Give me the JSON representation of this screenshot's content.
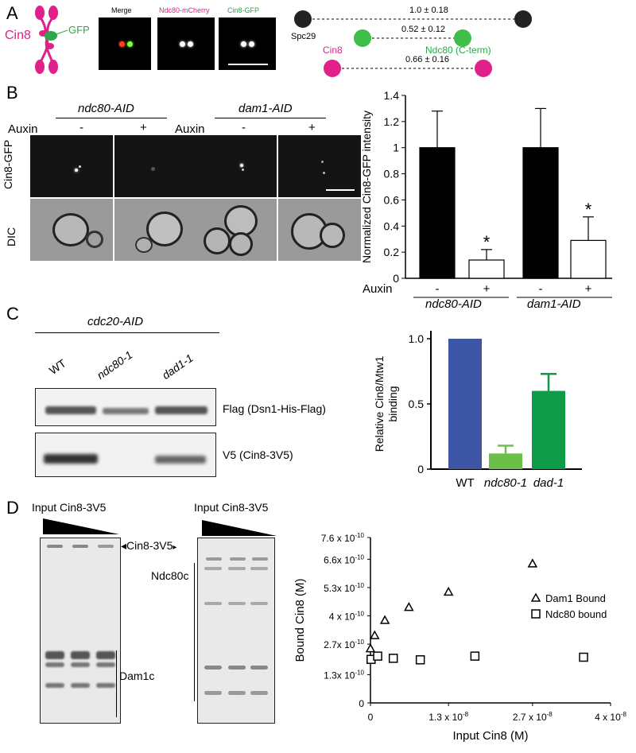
{
  "panel_labels": {
    "a": "A",
    "b": "B",
    "c": "C",
    "d": "D"
  },
  "colors": {
    "magenta": "#e0218a",
    "green": "#2aa84a",
    "wt_bar": "#3c55a5",
    "ndc80_bar": "#6cc04a",
    "dad1_bar": "#0f9a48"
  },
  "panelA": {
    "cin8": "Cin8",
    "gfp": "GFP",
    "merge": "Merge",
    "ndc80_mcherry": "Ndc80-mCherry",
    "cin8_gfp": "Cin8-GFP",
    "diagram": {
      "spc29": "Spc29",
      "ndc80_cterm": "Ndc80 (C-term)",
      "cin8": "Cin8",
      "dist_spc29": "1.0 ± 0.18",
      "dist_ndc80": "0.52 ± 0.12",
      "dist_cin8": "0.66 ± 0.16"
    }
  },
  "panelB": {
    "ndc80_aid": "ndc80-AID",
    "dam1_aid": "dam1-AID",
    "auxin": "Auxin",
    "minus": "-",
    "plus": "+",
    "row_gfp": "Cin8-GFP",
    "row_dic": "DIC"
  },
  "chartB": {
    "type": "bar",
    "ylabel": "Normalized Cin8-GFP intensity",
    "ylim": [
      0,
      1.4
    ],
    "yticks": [
      "0",
      "0.2",
      "0.4",
      "0.6",
      "0.8",
      "1",
      "1.2",
      "1.4"
    ],
    "auxin_label": "Auxin",
    "bars": [
      {
        "auxin": "-",
        "value": 1.0,
        "error": 0.28,
        "fill": "black",
        "star": ""
      },
      {
        "auxin": "+",
        "value": 0.14,
        "error": 0.08,
        "fill": "white",
        "star": "*"
      },
      {
        "auxin": "-",
        "value": 1.0,
        "error": 0.3,
        "fill": "black",
        "star": ""
      },
      {
        "auxin": "+",
        "value": 0.29,
        "error": 0.18,
        "fill": "white",
        "star": "*"
      }
    ],
    "groups": [
      "ndc80-AID",
      "dam1-AID"
    ]
  },
  "panelC": {
    "header": "cdc20-AID",
    "lanes": [
      "WT",
      "ndc80-1",
      "dad1-1"
    ],
    "blot1": "Flag (Dsn1-His-Flag)",
    "blot2": "V5 (Cin8-3V5)"
  },
  "chartC": {
    "type": "bar",
    "ylabel_line1": "Relative Cin8/Mtw1",
    "ylabel_line2": "binding",
    "ylim": [
      0,
      1.0
    ],
    "yticks": [
      "0",
      "0.5",
      "1.0"
    ],
    "categories": [
      "WT",
      "ndc80-1",
      "dad-1"
    ],
    "values": [
      1.0,
      0.12,
      0.6
    ],
    "errors": [
      0,
      0.06,
      0.13
    ]
  },
  "panelD": {
    "input1": "Input Cin8-3V5",
    "input2": "Input Cin8-3V5",
    "cin8_3v5": "Cin8-3V5",
    "ndc80c": "Ndc80c",
    "dam1c": "Dam1c"
  },
  "chartD": {
    "type": "scatter",
    "xlabel": "Input Cin8 (M)",
    "ylabel": "Bound Cin8 (M)",
    "xlim": [
      0,
      4e-08
    ],
    "ylim": [
      0,
      7.6e-10
    ],
    "xticks": [
      {
        "v": 0,
        "t": "0"
      },
      {
        "v": 1.3e-08,
        "t": "1.3 x 10"
      },
      {
        "v": 2.7e-08,
        "t": "2.7 x 10"
      },
      {
        "v": 4e-08,
        "t": "4 x 10"
      }
    ],
    "xexp": "-8",
    "yticks": [
      {
        "v": 0,
        "t": "0"
      },
      {
        "v": 1.3e-10,
        "t": "1.3x 10"
      },
      {
        "v": 2.7e-10,
        "t": "2.7x 10"
      },
      {
        "v": 4e-10,
        "t": "4 x 10"
      },
      {
        "v": 5.3e-10,
        "t": "5.3x 10"
      },
      {
        "v": 6.6e-10,
        "t": "6.6x 10"
      },
      {
        "v": 7.6e-10,
        "t": "7.6 x 10"
      }
    ],
    "yexp": "-10",
    "series": [
      {
        "name": "Dam1 Bound",
        "marker": "triangle",
        "x": [
          0,
          7e-10,
          2.4e-09,
          6.4e-09,
          1.3e-08,
          2.7e-08
        ],
        "y": [
          2.5e-10,
          3.1e-10,
          3.8e-10,
          4.4e-10,
          5.1e-10,
          6.4e-10
        ]
      },
      {
        "name": "Ndc80 bound",
        "marker": "square",
        "x": [
          1e-10,
          1.2e-09,
          3.8e-09,
          8.3e-09,
          1.74e-08,
          3.55e-08
        ],
        "y": [
          2e-10,
          2.15e-10,
          2.05e-10,
          1.98e-10,
          2.15e-10,
          2.1e-10
        ]
      }
    ]
  }
}
